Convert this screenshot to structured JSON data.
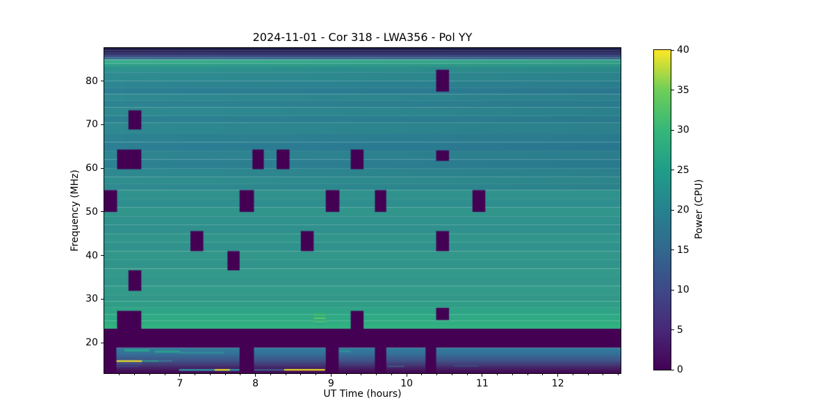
{
  "title": "2024-11-01 - Cor 318 - LWA356 - Pol YY",
  "chart_data": {
    "type": "heatmap",
    "title": "2024-11-01 - Cor 318 - LWA356 - Pol YY",
    "xlabel": "UT Time (hours)",
    "ylabel": "Frequency (MHz)",
    "colorbar_label": "Power (CPU)",
    "x_range": [
      6.0,
      12.83
    ],
    "y_range": [
      13.0,
      87.6
    ],
    "value_range": [
      0,
      40
    ],
    "x_ticks": [
      7,
      8,
      9,
      10,
      11,
      12
    ],
    "x_minor_tick_step": 0.2,
    "y_ticks": [
      20,
      30,
      40,
      50,
      60,
      70,
      80
    ],
    "colorbar_ticks": [
      0,
      5,
      10,
      15,
      20,
      25,
      30,
      35,
      40
    ],
    "grid": false,
    "colormap": "viridis",
    "flag_color": "#440154",
    "viridis_stops": [
      [
        0.0,
        "#440154"
      ],
      [
        0.125,
        "#482878"
      ],
      [
        0.25,
        "#3e4989"
      ],
      [
        0.375,
        "#31688e"
      ],
      [
        0.5,
        "#26828e"
      ],
      [
        0.625,
        "#1f9e89"
      ],
      [
        0.75,
        "#35b779"
      ],
      [
        0.875,
        "#6ece58"
      ],
      [
        1.0,
        "#fde725"
      ]
    ],
    "background_bands": [
      {
        "f": [
          87.0,
          87.6
        ],
        "color": "#1f1c49"
      },
      {
        "f": [
          86.5,
          87.0
        ],
        "color": "#2a2759"
      },
      {
        "f": [
          86.0,
          86.5
        ],
        "color": "#36336e"
      },
      {
        "f": [
          85.5,
          86.0
        ],
        "color": "#3c4a80"
      },
      {
        "f": [
          85.0,
          85.5
        ],
        "color": "#37698c"
      },
      {
        "f": [
          84.8,
          85.0
        ],
        "color": "#318c90"
      },
      {
        "f": [
          84.0,
          84.8
        ],
        "color": "#35ae8b"
      },
      {
        "f": [
          83.3,
          84.0
        ],
        "color": "#2f9f89"
      },
      {
        "f": [
          82.0,
          83.3
        ],
        "color": "#2e938e"
      },
      {
        "f": [
          80.0,
          82.0
        ],
        "color": "#2e8c91"
      },
      {
        "f": [
          78.5,
          80.0
        ],
        "color": "#2d8692"
      },
      {
        "f": [
          77.0,
          78.5
        ],
        "color": "#2c8093"
      },
      {
        "f": [
          75.5,
          77.0
        ],
        "color": "#2e8990"
      },
      {
        "f": [
          74.0,
          75.5
        ],
        "color": "#2d8492"
      },
      {
        "f": [
          72.0,
          74.0
        ],
        "color": "#2e8a90"
      },
      {
        "f": [
          70.5,
          72.0
        ],
        "color": "#2c8292"
      },
      {
        "f": [
          68.0,
          70.5
        ],
        "color": "#2e8990"
      },
      {
        "f": [
          66.0,
          68.0
        ],
        "color": "#2d8392"
      },
      {
        "f": [
          64.0,
          66.0
        ],
        "color": "#2c7f94"
      },
      {
        "f": [
          62.0,
          64.0
        ],
        "color": "#2e8691"
      },
      {
        "f": [
          60.0,
          62.0
        ],
        "color": "#2d8292"
      },
      {
        "f": [
          58.0,
          60.0
        ],
        "color": "#2e8990"
      },
      {
        "f": [
          56.5,
          58.0
        ],
        "color": "#2f8f8e"
      },
      {
        "f": [
          55.0,
          56.5
        ],
        "color": "#2e8b90"
      },
      {
        "f": [
          53.0,
          55.0
        ],
        "color": "#30928c"
      },
      {
        "f": [
          51.0,
          53.0
        ],
        "color": "#2f8f8e"
      },
      {
        "f": [
          49.0,
          51.0
        ],
        "color": "#31958b"
      },
      {
        "f": [
          47.0,
          49.0
        ],
        "color": "#30928d"
      },
      {
        "f": [
          45.0,
          47.0
        ],
        "color": "#2f908d"
      },
      {
        "f": [
          43.0,
          45.0
        ],
        "color": "#31958b"
      },
      {
        "f": [
          41.0,
          43.0
        ],
        "color": "#30928c"
      },
      {
        "f": [
          39.0,
          41.0
        ],
        "color": "#32978a"
      },
      {
        "f": [
          37.0,
          39.0
        ],
        "color": "#31948b"
      },
      {
        "f": [
          35.0,
          37.0
        ],
        "color": "#33998a"
      },
      {
        "f": [
          33.0,
          35.0
        ],
        "color": "#32968b"
      },
      {
        "f": [
          31.0,
          33.0
        ],
        "color": "#339a89"
      },
      {
        "f": [
          29.5,
          31.0
        ],
        "color": "#329788"
      },
      {
        "f": [
          28.0,
          29.5
        ],
        "color": "#309d87"
      },
      {
        "f": [
          26.5,
          28.0
        ],
        "color": "#2ea386"
      },
      {
        "f": [
          25.0,
          26.5
        ],
        "color": "#2fa984"
      },
      {
        "f": [
          24.0,
          25.0
        ],
        "color": "#30ae82"
      },
      {
        "f": [
          23.2,
          24.0
        ],
        "color": "#33b281"
      }
    ],
    "rfi_band": {
      "f": [
        18.85,
        23.2
      ]
    },
    "flagged_boxes": [
      {
        "t": [
          6.0,
          6.17
        ],
        "f": [
          50.0,
          55.0
        ]
      },
      {
        "t": [
          6.17,
          6.49
        ],
        "f": [
          59.8,
          64.3
        ]
      },
      {
        "t": [
          6.32,
          6.49
        ],
        "f": [
          68.9,
          73.3
        ]
      },
      {
        "t": [
          6.32,
          6.49
        ],
        "f": [
          31.9,
          36.6
        ]
      },
      {
        "t": [
          6.17,
          6.49
        ],
        "f": [
          23.0,
          27.3
        ]
      },
      {
        "t": [
          7.14,
          7.31
        ],
        "f": [
          41.0,
          45.6
        ]
      },
      {
        "t": [
          7.63,
          7.79
        ],
        "f": [
          36.6,
          41.0
        ]
      },
      {
        "t": [
          7.79,
          7.98
        ],
        "f": [
          50.0,
          55.0
        ]
      },
      {
        "t": [
          7.96,
          8.11
        ],
        "f": [
          59.8,
          64.3
        ]
      },
      {
        "t": [
          8.28,
          8.45
        ],
        "f": [
          59.8,
          64.3
        ]
      },
      {
        "t": [
          8.6,
          8.77
        ],
        "f": [
          41.0,
          45.6
        ]
      },
      {
        "t": [
          8.93,
          9.11
        ],
        "f": [
          50.0,
          55.0
        ]
      },
      {
        "t": [
          9.26,
          9.43
        ],
        "f": [
          59.8,
          64.3
        ]
      },
      {
        "t": [
          9.26,
          9.43
        ],
        "f": [
          23.0,
          27.3
        ]
      },
      {
        "t": [
          9.58,
          9.73
        ],
        "f": [
          50.0,
          55.0
        ]
      },
      {
        "t": [
          10.39,
          10.56
        ],
        "f": [
          77.6,
          82.6
        ]
      },
      {
        "t": [
          10.39,
          10.56
        ],
        "f": [
          61.7,
          64.1
        ]
      },
      {
        "t": [
          10.39,
          10.56
        ],
        "f": [
          41.0,
          45.6
        ]
      },
      {
        "t": [
          10.39,
          10.56
        ],
        "f": [
          25.2,
          28.0
        ]
      },
      {
        "t": [
          10.87,
          11.04
        ],
        "f": [
          50.0,
          55.0
        ]
      }
    ],
    "bottom_flag_columns": [
      [
        6.0,
        6.16
      ],
      [
        7.79,
        7.98
      ],
      [
        8.93,
        9.1
      ],
      [
        9.58,
        9.73
      ],
      [
        10.25,
        10.39
      ]
    ],
    "bottom_region": {
      "f": [
        13.0,
        18.85
      ],
      "gradient": [
        [
          0.0,
          "#2f809c"
        ],
        [
          0.25,
          "#356f97"
        ],
        [
          0.5,
          "#3f5488"
        ],
        [
          0.7,
          "#453472"
        ],
        [
          0.85,
          "#44195f"
        ],
        [
          1.0,
          "#440754"
        ]
      ],
      "streaks": [
        {
          "t": [
            6.27,
            6.6
          ],
          "f": [
            18.0,
            18.5
          ],
          "color": "#2aa58b"
        },
        {
          "t": [
            6.67,
            7.0
          ],
          "f": [
            17.7,
            18.2
          ],
          "color": "#2b9f8f"
        },
        {
          "t": [
            7.0,
            7.58
          ],
          "f": [
            17.5,
            17.9
          ],
          "color": "#318b9b"
        },
        {
          "t": [
            6.16,
            6.5
          ],
          "f": [
            15.6,
            15.95
          ],
          "color": "#f5e226"
        },
        {
          "t": [
            6.5,
            6.72
          ],
          "f": [
            15.65,
            15.95
          ],
          "color": "#2f9f8b"
        },
        {
          "t": [
            6.72,
            6.9
          ],
          "f": [
            15.7,
            15.95
          ],
          "color": "#3f7d99"
        },
        {
          "t": [
            6.16,
            6.5
          ],
          "f": [
            15.0,
            15.3
          ],
          "color": "#43558a"
        },
        {
          "t": [
            6.16,
            6.46
          ],
          "f": [
            14.4,
            14.7
          ],
          "color": "#463f7b"
        },
        {
          "t": [
            6.99,
            7.79
          ],
          "f": [
            13.55,
            13.95
          ],
          "color": "#2e93a4"
        },
        {
          "t": [
            7.46,
            7.66
          ],
          "f": [
            13.6,
            13.95
          ],
          "color": "#e9dd26"
        },
        {
          "t": [
            7.98,
            8.38
          ],
          "f": [
            13.6,
            13.9
          ],
          "color": "#3a6c94"
        },
        {
          "t": [
            8.38,
            8.92
          ],
          "f": [
            13.6,
            13.95
          ],
          "color": "#f0e022"
        },
        {
          "t": [
            9.11,
            9.26
          ],
          "f": [
            17.8,
            18.2
          ],
          "color": "#318f99"
        },
        {
          "t": [
            9.74,
            9.97
          ],
          "f": [
            14.4,
            14.75
          ],
          "color": "#41547f"
        },
        {
          "t": [
            10.62,
            10.95
          ],
          "f": [
            14.55,
            14.85
          ],
          "color": "#3c4e80"
        },
        {
          "t": [
            11.9,
            12.4
          ],
          "f": [
            14.9,
            15.15
          ],
          "color": "#42407b"
        }
      ]
    },
    "bright_patch": {
      "t": [
        8.77,
        8.93
      ],
      "f": [
        24.2,
        27.0
      ],
      "stripe_colors": [
        "#2fa884",
        "#4dbe6e",
        "#2fa884",
        "#58c566",
        "#2fa884",
        "#4dbe6e",
        "#2fa884"
      ]
    }
  }
}
